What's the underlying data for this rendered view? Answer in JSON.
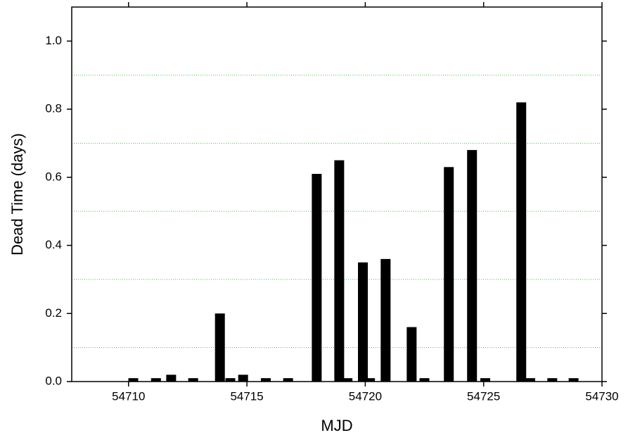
{
  "chart_data": {
    "type": "bar",
    "xlabel": "MJD",
    "ylabel": "Dead Time (days)",
    "x": [
      54710.2,
      54711.16,
      54711.8,
      54712.73,
      54713.86,
      54714.3,
      54714.84,
      54715.8,
      54716.74,
      54717.95,
      54718.9,
      54719.25,
      54719.9,
      54720.2,
      54720.86,
      54721.96,
      54722.5,
      54723.53,
      54724.51,
      54725.07,
      54726.59,
      54726.97,
      54727.9,
      54728.8
    ],
    "values": [
      0.01,
      0.01,
      0.02,
      0.01,
      0.2,
      0.01,
      0.02,
      0.01,
      0.01,
      0.61,
      0.65,
      0.01,
      0.35,
      0.01,
      0.36,
      0.16,
      0.01,
      0.63,
      0.68,
      0.01,
      0.82,
      0.01,
      0.01,
      0.01
    ],
    "color": "#000000",
    "xlim": [
      54707.6,
      54730
    ],
    "xticks": [
      54710,
      54715,
      54720,
      54725,
      54730
    ],
    "ylim": [
      0,
      1.1
    ],
    "yticks": [
      {
        "value": 0,
        "label": "0.0"
      },
      0.2,
      0.4,
      0.6,
      0.8,
      {
        "value": 1,
        "label": "1.0"
      }
    ],
    "grid": true,
    "grid_color": "#33cc33",
    "grid_yticks": [
      0.1,
      0.3,
      0.5,
      0.7,
      0.9
    ]
  }
}
